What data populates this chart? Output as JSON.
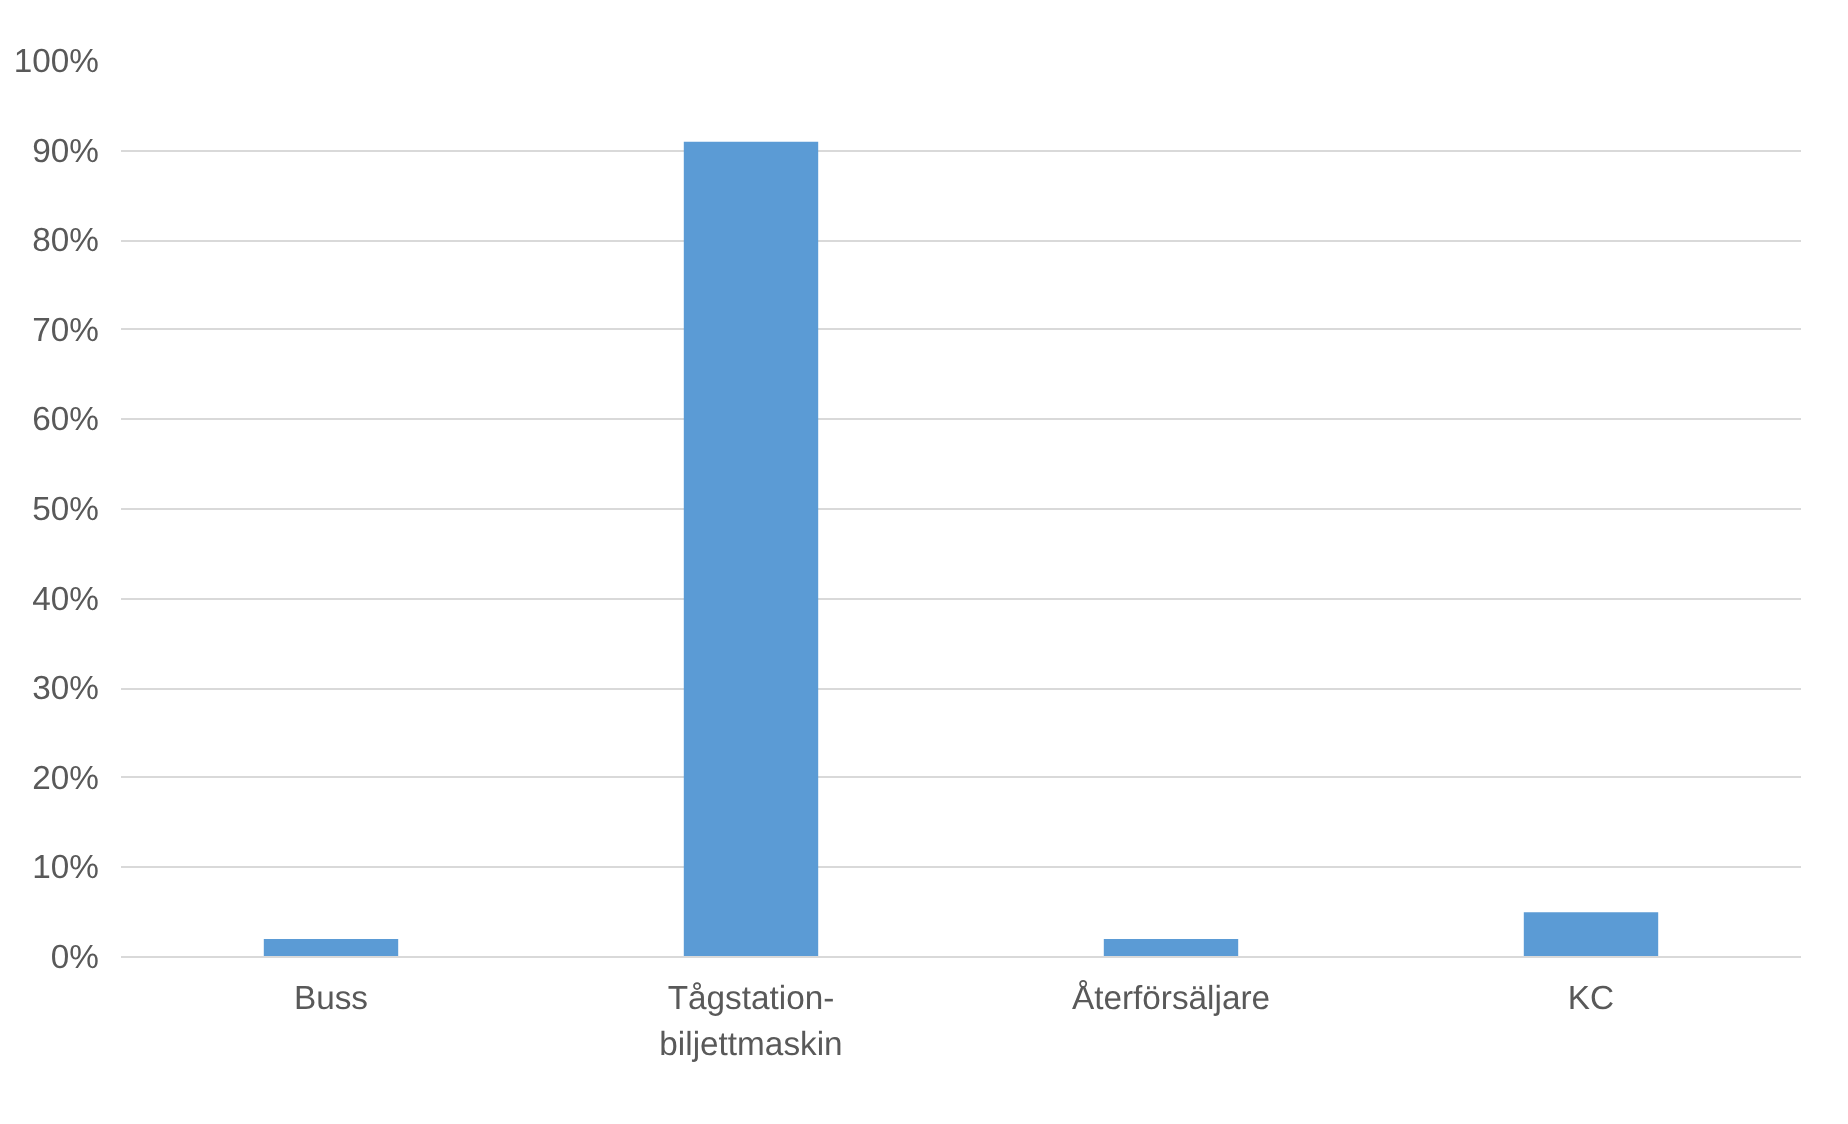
{
  "chart_data": {
    "type": "bar",
    "categories": [
      "Buss",
      "Tågstation-biljettmaskin",
      "Återförsäljare",
      "KC"
    ],
    "values": [
      2,
      91,
      2,
      5
    ],
    "color": "#5b9bd5",
    "ylim": [
      0,
      100
    ],
    "yticks": [
      {
        "value": 0,
        "label": "0%"
      },
      {
        "value": 10,
        "label": "10%"
      },
      {
        "value": 20,
        "label": "20%"
      },
      {
        "value": 30,
        "label": "30%"
      },
      {
        "value": 40,
        "label": "40%"
      },
      {
        "value": 50,
        "label": "50%"
      },
      {
        "value": 60,
        "label": "60%"
      },
      {
        "value": 70,
        "label": "70%"
      },
      {
        "value": 80,
        "label": "80%"
      },
      {
        "value": 90,
        "label": "90%"
      },
      {
        "value": 100,
        "label": "100%"
      }
    ],
    "grid": "y"
  }
}
